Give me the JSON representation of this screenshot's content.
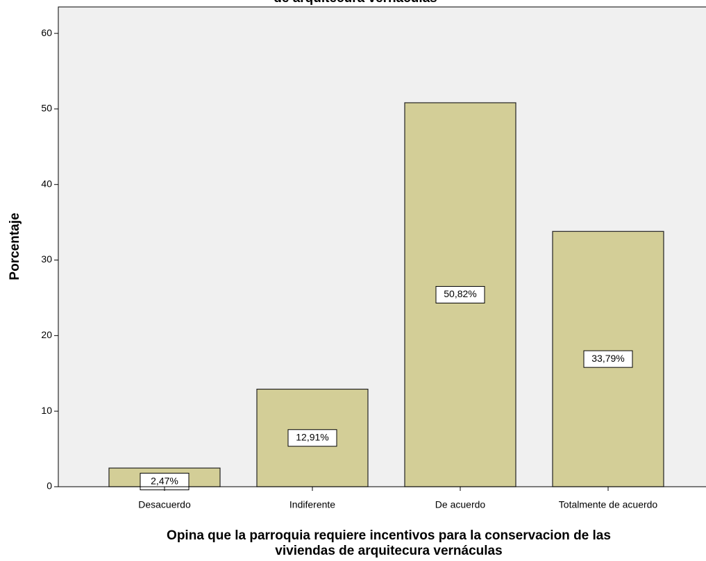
{
  "chart_data": {
    "type": "bar",
    "title": "de arquitecura vernáculas",
    "ylabel": "Porcentaje",
    "xlabel": [
      "Opina que la parroquia requiere incentivos para la conservacion de las",
      "viviendas de arquitecura vernáculas"
    ],
    "categories": [
      "Desacuerdo",
      "Indiferente",
      "De acuerdo",
      "Totalmente de acuerdo"
    ],
    "values": [
      2.47,
      12.91,
      50.82,
      33.79
    ],
    "value_labels": [
      "2,47%",
      "12,91%",
      "50,82%",
      "33,79%"
    ],
    "color": "#d3ce97",
    "ylim": [
      0,
      63.5
    ],
    "yticks": [
      0,
      10,
      20,
      30,
      40,
      50,
      60
    ],
    "grid": false
  }
}
